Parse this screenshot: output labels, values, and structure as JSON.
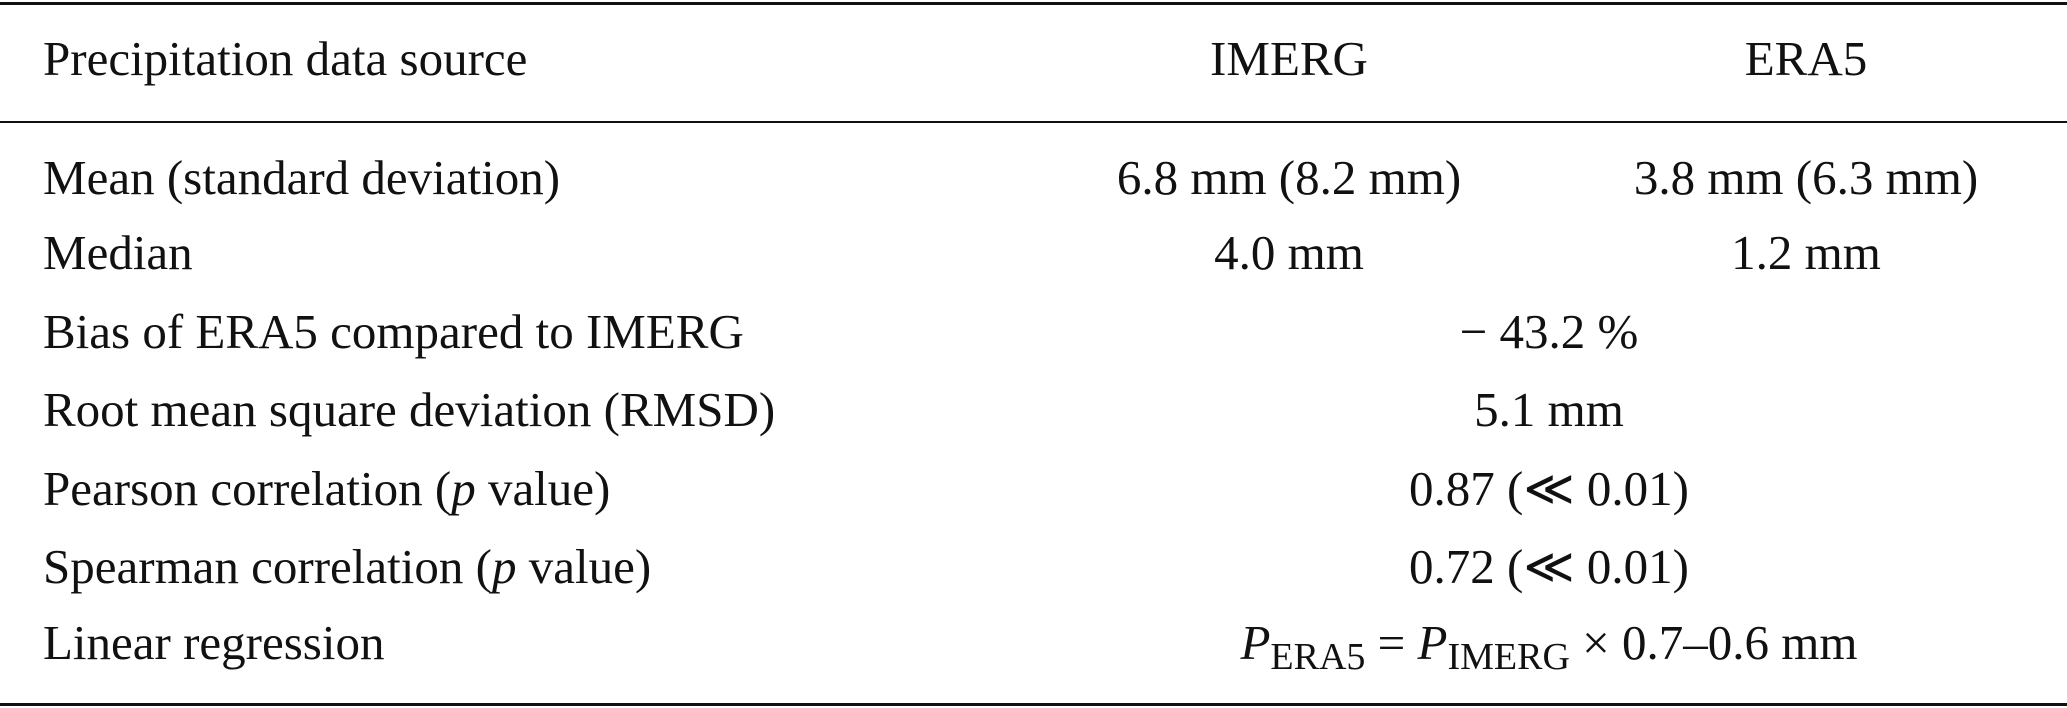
{
  "table": {
    "header": [
      "Precipitation data source",
      "IMERG",
      "ERA5"
    ],
    "rows": [
      {
        "label": [
          "Mean (standard deviation)"
        ],
        "cells": [
          "6.8 mm (8.2 mm)",
          "3.8 mm (6.3 mm)"
        ]
      },
      {
        "label": [
          "Median"
        ],
        "cells": [
          "4.0 mm",
          "1.2 mm"
        ]
      },
      {
        "label": [
          "Bias of ERA5 compared to IMERG"
        ],
        "merged": [
          "− 43.2 %"
        ]
      },
      {
        "label": [
          "Root mean square deviation (RMSD)"
        ],
        "merged": [
          "5.1 mm"
        ]
      },
      {
        "label": [
          "Pearson correlation (",
          "p",
          " value)"
        ],
        "merged": [
          "0.87 (≪ 0.01)"
        ]
      },
      {
        "label": [
          "Spearman correlation (",
          "p",
          " value)"
        ],
        "merged": [
          "0.72 (≪ 0.01)"
        ]
      },
      {
        "label": [
          "Linear regression"
        ],
        "merged": [
          "P",
          "ERA5",
          " = ",
          "P",
          "IMERG",
          " × 0.7–0.6 mm"
        ]
      }
    ]
  }
}
